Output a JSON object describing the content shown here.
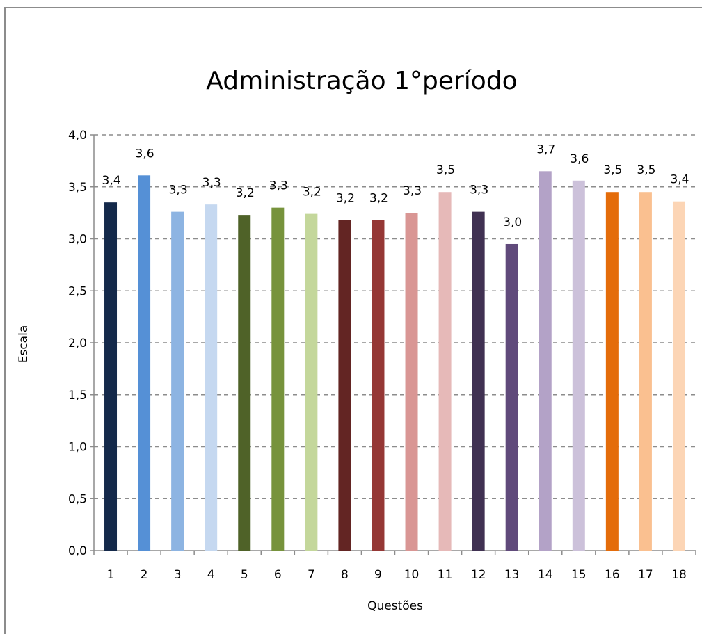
{
  "chart_data": {
    "type": "bar",
    "title": "Administração 1°período",
    "xlabel": "Questões",
    "ylabel": "Escala",
    "ylim": [
      0,
      4.0
    ],
    "yticks": [
      "0,0",
      "0,5",
      "1,0",
      "1,5",
      "2,0",
      "2,5",
      "3,0",
      "3,5",
      "4,0"
    ],
    "categories": [
      "1",
      "2",
      "3",
      "4",
      "5",
      "6",
      "7",
      "8",
      "9",
      "10",
      "11",
      "12",
      "13",
      "14",
      "15",
      "16",
      "17",
      "18"
    ],
    "values": [
      3.35,
      3.61,
      3.26,
      3.33,
      3.23,
      3.3,
      3.24,
      3.18,
      3.18,
      3.25,
      3.45,
      3.26,
      2.95,
      3.65,
      3.56,
      3.45,
      3.45,
      3.36
    ],
    "labels": [
      "3,4",
      "3,6",
      "3,3",
      "3,3",
      "3,2",
      "3,3",
      "3,2",
      "3,2",
      "3,2",
      "3,3",
      "3,5",
      "3,3",
      "3,0",
      "3,7",
      "3,6",
      "3,5",
      "3,5",
      "3,4"
    ],
    "colors": [
      "#14294a",
      "#5590d6",
      "#8db4e2",
      "#c5d8f0",
      "#4f6228",
      "#77933c",
      "#c4d79b",
      "#632523",
      "#953735",
      "#d99694",
      "#e6b9b8",
      "#403152",
      "#604a7b",
      "#b3a2c7",
      "#ccc1da",
      "#e46c0a",
      "#fac090",
      "#fcd5b5"
    ],
    "grid": true,
    "legend": "none"
  }
}
